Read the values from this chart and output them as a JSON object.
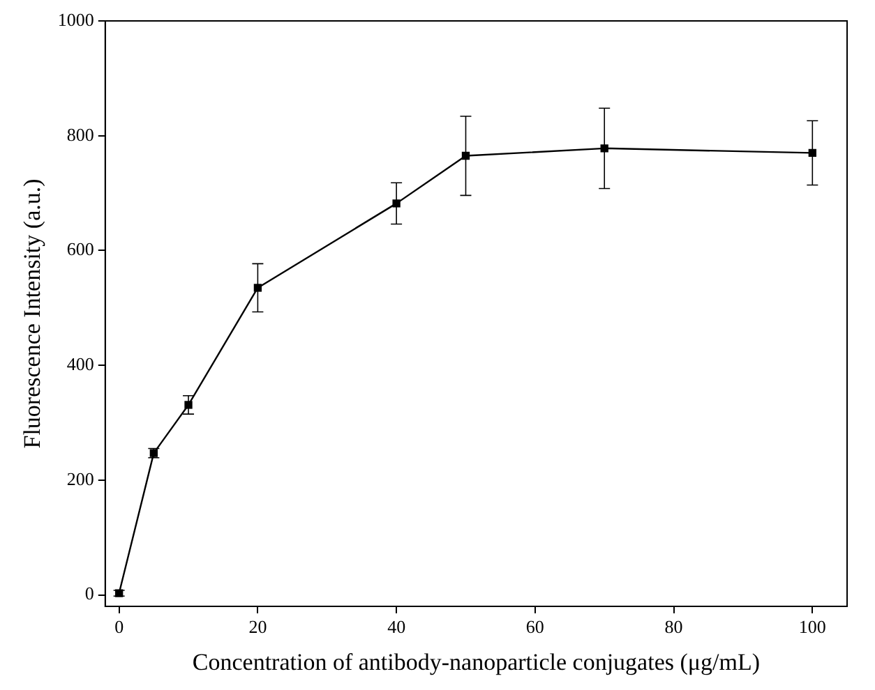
{
  "chart_data": {
    "type": "line",
    "xlabel": "Concentration of antibody-nanoparticle conjugates (μg/mL)",
    "ylabel": "Fluorescence Intensity (a.u.)",
    "x": [
      0,
      5,
      10,
      20,
      40,
      50,
      70,
      100
    ],
    "series": [
      {
        "color": "#000000",
        "values": [
          3,
          247,
          331,
          535,
          682,
          765,
          778,
          770
        ],
        "errors": [
          5,
          8,
          16,
          42,
          36,
          69,
          70,
          56
        ]
      }
    ],
    "xlim": [
      -2,
      105
    ],
    "xticks": [
      0,
      20,
      40,
      60,
      80,
      100
    ],
    "ylim": [
      -20,
      1000
    ],
    "yticks": [
      0,
      200,
      400,
      600,
      800,
      1000
    ],
    "marker": "square",
    "line_style": "solid",
    "grid": false,
    "legend": false
  }
}
